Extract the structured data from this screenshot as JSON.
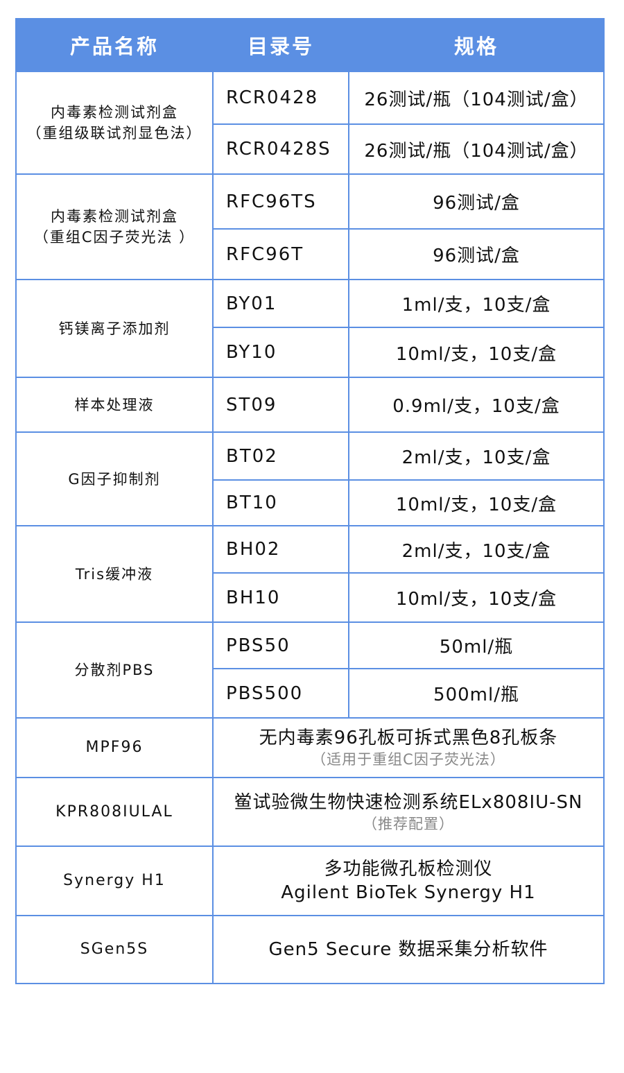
{
  "header": {
    "name": "产品名称",
    "catalog": "目录号",
    "spec": "规格"
  },
  "groups": [
    {
      "name": [
        "内毒素检测试剂盒",
        "（重组级联试剂显色法）"
      ],
      "items": [
        {
          "catalog": "RCR0428",
          "spec": "26测试/瓶（104测试/盒）"
        },
        {
          "catalog": "RCR0428S",
          "spec": "26测试/瓶（104测试/盒）"
        }
      ]
    },
    {
      "name": [
        "内毒素检测试剂盒",
        "（重组C因子荧光法 ）"
      ],
      "items": [
        {
          "catalog": "RFC96TS",
          "spec": "96测试/盒"
        },
        {
          "catalog": "RFC96T",
          "spec": "96测试/盒"
        }
      ]
    },
    {
      "name": [
        "钙镁离子添加剂"
      ],
      "items": [
        {
          "catalog": "BY01",
          "spec": "1ml/支，10支/盒"
        },
        {
          "catalog": "BY10",
          "spec": "10ml/支，10支/盒"
        }
      ]
    },
    {
      "name": [
        "样本处理液"
      ],
      "items": [
        {
          "catalog": "ST09",
          "spec": "0.9ml/支，10支/盒"
        }
      ]
    },
    {
      "name": [
        "G因子抑制剂"
      ],
      "items": [
        {
          "catalog": "BT02",
          "spec": "2ml/支，10支/盒"
        },
        {
          "catalog": "BT10",
          "spec": "10ml/支，10支/盒"
        }
      ]
    },
    {
      "name": [
        "Tris缓冲液"
      ],
      "items": [
        {
          "catalog": "BH02",
          "spec": "2ml/支，10支/盒"
        },
        {
          "catalog": "BH10",
          "spec": "10ml/支，10支/盒"
        }
      ]
    },
    {
      "name": [
        "分散剂PBS"
      ],
      "items": [
        {
          "catalog": "PBS50",
          "spec": "50ml/瓶"
        },
        {
          "catalog": "PBS500",
          "spec": "500ml/瓶"
        }
      ]
    }
  ],
  "equipment": [
    {
      "catalog": "MPF96",
      "spec": "无内毒素96孔板可拆式黑色8孔板条",
      "note": "（适用于重组C因子荧光法）"
    },
    {
      "catalog": "KPR808IULAL",
      "spec": "鲎试验微生物快速检测系统ELx808IU-SN",
      "note": "（推荐配置）"
    },
    {
      "catalog": "Synergy H1",
      "spec": "多功能微孔板检测仪",
      "spec2": "Agilent BioTek Synergy H1"
    },
    {
      "catalog": "SGen5S",
      "spec": "Gen5 Secure 数据采集分析软件"
    }
  ],
  "colors": {
    "accent": "#5b8fe3"
  }
}
